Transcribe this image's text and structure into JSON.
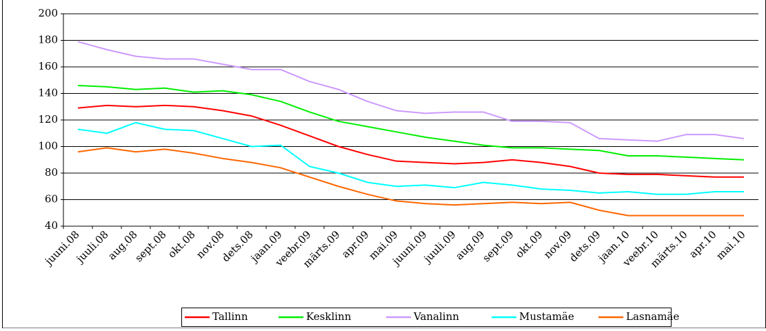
{
  "chart_data": {
    "type": "line",
    "categories": [
      "juuni.08",
      "juuli.08",
      "aug.08",
      "sept.08",
      "okt.08",
      "nov.08",
      "dets.08",
      "jaan.09",
      "veebr.09",
      "märts.09",
      "apr.09",
      "mai.09",
      "juuni.09",
      "juuli.09",
      "aug.09",
      "sept.09",
      "okt.09",
      "nov.09",
      "dets.09",
      "jaan.10",
      "veebr.10",
      "märts.10",
      "apr.10",
      "mai.10"
    ],
    "series": [
      {
        "name": "Tallinn",
        "color": "#ff0000",
        "values": [
          129,
          131,
          130,
          131,
          130,
          127,
          123,
          116,
          108,
          100,
          94,
          89,
          88,
          87,
          88,
          90,
          88,
          85,
          80,
          79,
          79,
          78,
          77,
          77
        ]
      },
      {
        "name": "Kesklinn",
        "color": "#00ee00",
        "values": [
          146,
          145,
          143,
          144,
          141,
          142,
          139,
          134,
          126,
          119,
          115,
          111,
          107,
          104,
          101,
          99,
          99,
          98,
          97,
          93,
          93,
          92,
          91,
          90
        ]
      },
      {
        "name": "Vanalinn",
        "color": "#cc99ff",
        "values": [
          179,
          173,
          168,
          166,
          166,
          162,
          158,
          158,
          149,
          143,
          134,
          127,
          125,
          126,
          126,
          119,
          119,
          118,
          106,
          105,
          104,
          109,
          109,
          106
        ]
      },
      {
        "name": "Mustamäe",
        "color": "#00ffff",
        "values": [
          113,
          110,
          118,
          113,
          112,
          106,
          100,
          101,
          85,
          80,
          73,
          70,
          71,
          69,
          73,
          71,
          68,
          67,
          65,
          66,
          64,
          64,
          66,
          66
        ]
      },
      {
        "name": "Lasnamäe",
        "color": "#ff6600",
        "values": [
          96,
          99,
          96,
          98,
          95,
          91,
          88,
          84,
          77,
          70,
          64,
          59,
          57,
          56,
          57,
          58,
          57,
          58,
          52,
          48,
          48,
          48,
          48,
          48
        ]
      }
    ],
    "ylim": [
      40,
      200
    ],
    "yticks": [
      40,
      60,
      80,
      100,
      120,
      140,
      160,
      180,
      200
    ],
    "grid": true
  }
}
